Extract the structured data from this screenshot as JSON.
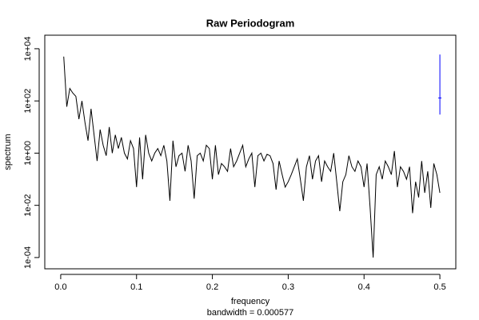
{
  "chart_data": {
    "type": "line",
    "title": "Raw Periodogram",
    "xlabel": "frequency",
    "ylabel": "spectrum",
    "subtitle": "bandwidth = 0.000577",
    "log_y": true,
    "color": "#000000",
    "xlim": [
      -0.021,
      0.521
    ],
    "ylim": [
      3.7e-05,
      33000
    ],
    "xticks": [
      {
        "value": 0,
        "label": "0.0"
      },
      0.1,
      0.2,
      0.3,
      0.4,
      0.5
    ],
    "yticks": [
      {
        "value": 0.0001,
        "label": "1e-04"
      },
      {
        "value": 0.01,
        "label": "1e-02"
      },
      {
        "value": 1,
        "label": "1e+00"
      },
      {
        "value": 100,
        "label": "1e+02"
      },
      {
        "value": 10000,
        "label": "1e+04"
      }
    ],
    "x": [
      0.004,
      0.008,
      0.012,
      0.016,
      0.02,
      0.024,
      0.028,
      0.032,
      0.036,
      0.04,
      0.044,
      0.048,
      0.052,
      0.056,
      0.06,
      0.064,
      0.068,
      0.072,
      0.076,
      0.08,
      0.084,
      0.088,
      0.092,
      0.096,
      0.1,
      0.104,
      0.108,
      0.112,
      0.116,
      0.12,
      0.124,
      0.128,
      0.132,
      0.136,
      0.14,
      0.144,
      0.148,
      0.152,
      0.156,
      0.16,
      0.164,
      0.168,
      0.172,
      0.176,
      0.18,
      0.184,
      0.188,
      0.192,
      0.196,
      0.2,
      0.204,
      0.208,
      0.212,
      0.216,
      0.22,
      0.224,
      0.228,
      0.232,
      0.236,
      0.24,
      0.244,
      0.248,
      0.252,
      0.256,
      0.26,
      0.264,
      0.268,
      0.272,
      0.276,
      0.28,
      0.284,
      0.288,
      0.292,
      0.296,
      0.3,
      0.304,
      0.308,
      0.312,
      0.316,
      0.32,
      0.324,
      0.328,
      0.332,
      0.336,
      0.34,
      0.344,
      0.348,
      0.352,
      0.356,
      0.36,
      0.364,
      0.368,
      0.372,
      0.376,
      0.38,
      0.384,
      0.388,
      0.392,
      0.396,
      0.4,
      0.404,
      0.408,
      0.412,
      0.416,
      0.42,
      0.424,
      0.428,
      0.432,
      0.436,
      0.44,
      0.444,
      0.448,
      0.452,
      0.456,
      0.46,
      0.464,
      0.468,
      0.472,
      0.476,
      0.48,
      0.484,
      0.488,
      0.492,
      0.496,
      0.5
    ],
    "values": [
      5000,
      60,
      300,
      200,
      150,
      20,
      100,
      15,
      3,
      50,
      5,
      0.5,
      8,
      2,
      0.8,
      10,
      1,
      5,
      1.5,
      4,
      1,
      0.6,
      3,
      1.5,
      0.05,
      4,
      0.1,
      5,
      1,
      0.5,
      1,
      1.5,
      0.8,
      2,
      0.5,
      0.015,
      3,
      0.3,
      0.8,
      1,
      0.2,
      2,
      0.5,
      0.018,
      0.8,
      1,
      0.5,
      2,
      1.5,
      0.1,
      2,
      0.15,
      0.4,
      0.3,
      0.2,
      1.5,
      0.3,
      0.5,
      1,
      2,
      0.3,
      0.6,
      1,
      0.05,
      0.8,
      1,
      0.5,
      0.9,
      0.8,
      0.4,
      0.04,
      0.5,
      0.15,
      0.05,
      0.08,
      0.15,
      0.3,
      0.6,
      0.1,
      0.015,
      0.3,
      0.8,
      0.1,
      0.5,
      0.8,
      0.08,
      0.5,
      0.3,
      0.2,
      1,
      0.08,
      0.006,
      0.08,
      0.15,
      0.8,
      0.3,
      0.2,
      0.5,
      0.3,
      0.05,
      0.4,
      0.008,
      0.0001,
      0.15,
      0.3,
      0.1,
      0.5,
      0.3,
      0.15,
      1.2,
      0.05,
      0.3,
      0.2,
      0.1,
      0.3,
      0.005,
      0.08,
      0.02,
      0.5,
      0.03,
      0.2,
      0.008,
      0.4,
      0.15,
      0.03
    ],
    "ci": {
      "x": 0.5,
      "lower": 30,
      "center": 130,
      "upper": 6000,
      "color": "#0000ff"
    }
  }
}
